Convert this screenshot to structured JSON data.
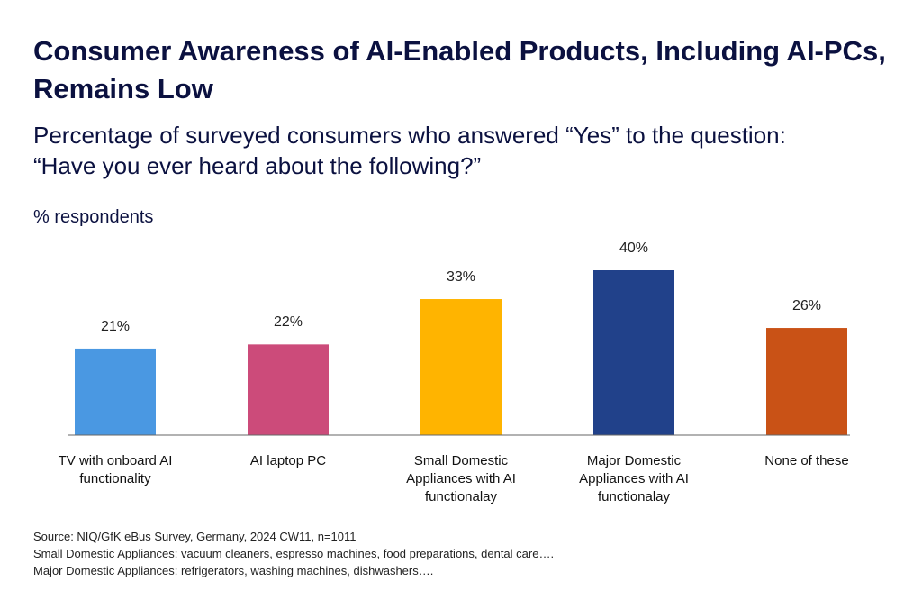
{
  "chart_data": {
    "type": "bar",
    "title": "Consumer Awareness of AI-Enabled Products, Including AI-PCs, Remains Low",
    "subtitle": "Percentage of surveyed consumers who answered “Yes” to the question: “Have you ever heard about the following?”",
    "ylabel": "% respondents",
    "categories": [
      "TV with onboard AI functionality",
      "AI laptop PC",
      "Small Domestic Appliances with AI functionalay",
      "Major Domestic Appliances with AI functionalay",
      "None of these"
    ],
    "values": [
      21,
      22,
      33,
      40,
      26
    ],
    "value_labels": [
      "21%",
      "22%",
      "33%",
      "40%",
      "26%"
    ],
    "colors": [
      "#4a98e2",
      "#cc4b7a",
      "#ffb400",
      "#21418a",
      "#c95216"
    ],
    "ylim": [
      0,
      40
    ],
    "notes": [
      "Source: NIQ/GfK eBus Survey, Germany, 2024 CW11, n=1011",
      "Small Domestic Appliances: vacuum cleaners, espresso machines, food preparations, dental care….",
      "Major Domestic Appliances: refrigerators, washing machines, dishwashers…."
    ]
  }
}
